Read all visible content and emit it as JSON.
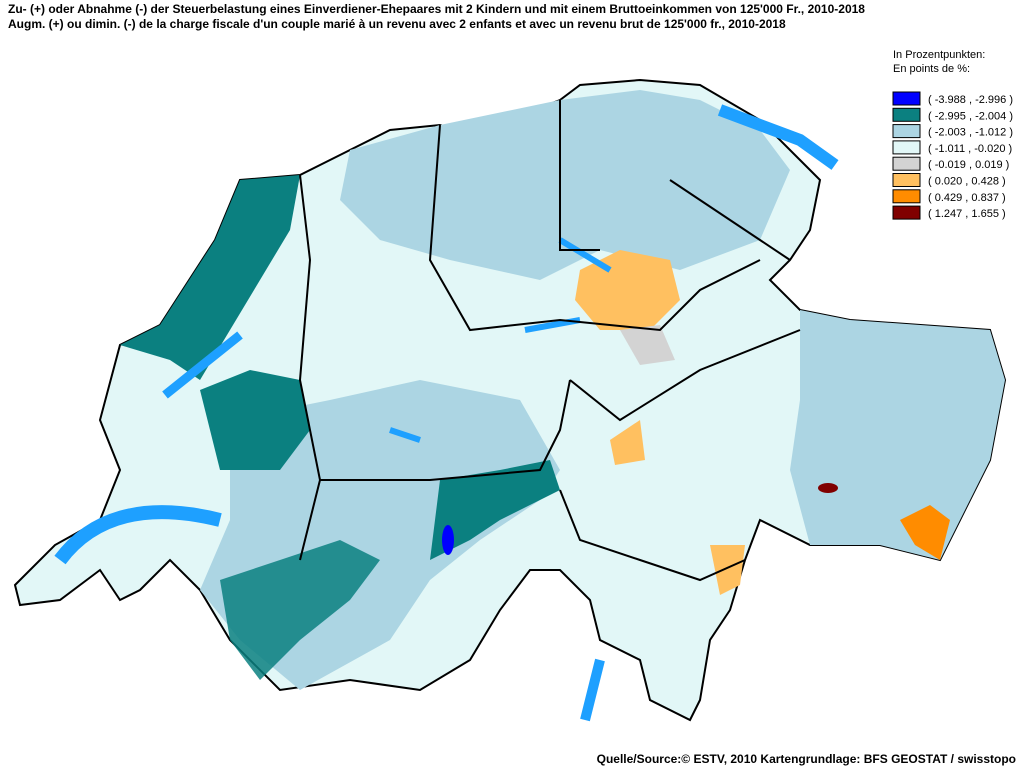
{
  "title": [
    "Zu- (+) oder Abnahme (-) der Steuerbelastung eines Einverdiener-Ehepaares mit 2 Kindern und mit einem Bruttoeinkommen von 125'000 Fr., 2010-2018",
    "Augm. (+) ou dimin. (-) de la charge fiscale d'un couple marié à un revenu avec 2 enfants et avec un revenu brut de 125'000 fr., 2010-2018"
  ],
  "legend": {
    "heading": [
      "In Prozentpunkten:",
      "En points de %:"
    ],
    "items": [
      {
        "label": "( -3.988 , -2.996 )",
        "color": "#0000ff"
      },
      {
        "label": "( -2.995 , -2.004 )",
        "color": "#0b8080"
      },
      {
        "label": "( -2.003 , -1.012 )",
        "color": "#acd5e3"
      },
      {
        "label": "( -1.011 , -0.020 )",
        "color": "#e2f7f7"
      },
      {
        "label": "( -0.019 , 0.019 )",
        "color": "#d3d3d3"
      },
      {
        "label": "( 0.020 , 0.428 )",
        "color": "#ffc060"
      },
      {
        "label": "( 0.429 , 0.837 )",
        "color": "#ff8c00"
      },
      {
        "label": "( 1.247 , 1.655 )",
        "color": "#800000"
      }
    ]
  },
  "source": "Quelle/Source:© ESTV, 2010 Kartengrundlage: BFS GEOSTAT / swisstopo"
}
